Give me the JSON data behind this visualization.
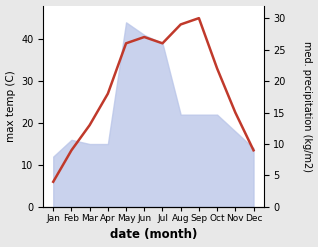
{
  "months": [
    "Jan",
    "Feb",
    "Mar",
    "Apr",
    "May",
    "Jun",
    "Jul",
    "Aug",
    "Sep",
    "Oct",
    "Nov",
    "Dec"
  ],
  "temp": [
    12,
    16,
    15,
    15,
    44,
    41,
    39,
    22,
    22,
    22,
    18,
    14
  ],
  "precip": [
    4,
    9,
    13,
    18,
    26,
    27,
    26,
    29,
    30,
    22,
    15,
    9
  ],
  "temp_fill_color": "#b8c4e8",
  "precip_color": "#c0392b",
  "ylabel_left": "max temp (C)",
  "ylabel_right": "med. precipitation (kg/m2)",
  "xlabel": "date (month)",
  "ylim_left": [
    0,
    48
  ],
  "ylim_right": [
    0,
    32
  ],
  "yticks_left": [
    0,
    10,
    20,
    30,
    40
  ],
  "yticks_right": [
    0,
    5,
    10,
    15,
    20,
    25,
    30
  ],
  "bg_color": "#e8e8e8",
  "plot_bg_color": "#ffffff"
}
